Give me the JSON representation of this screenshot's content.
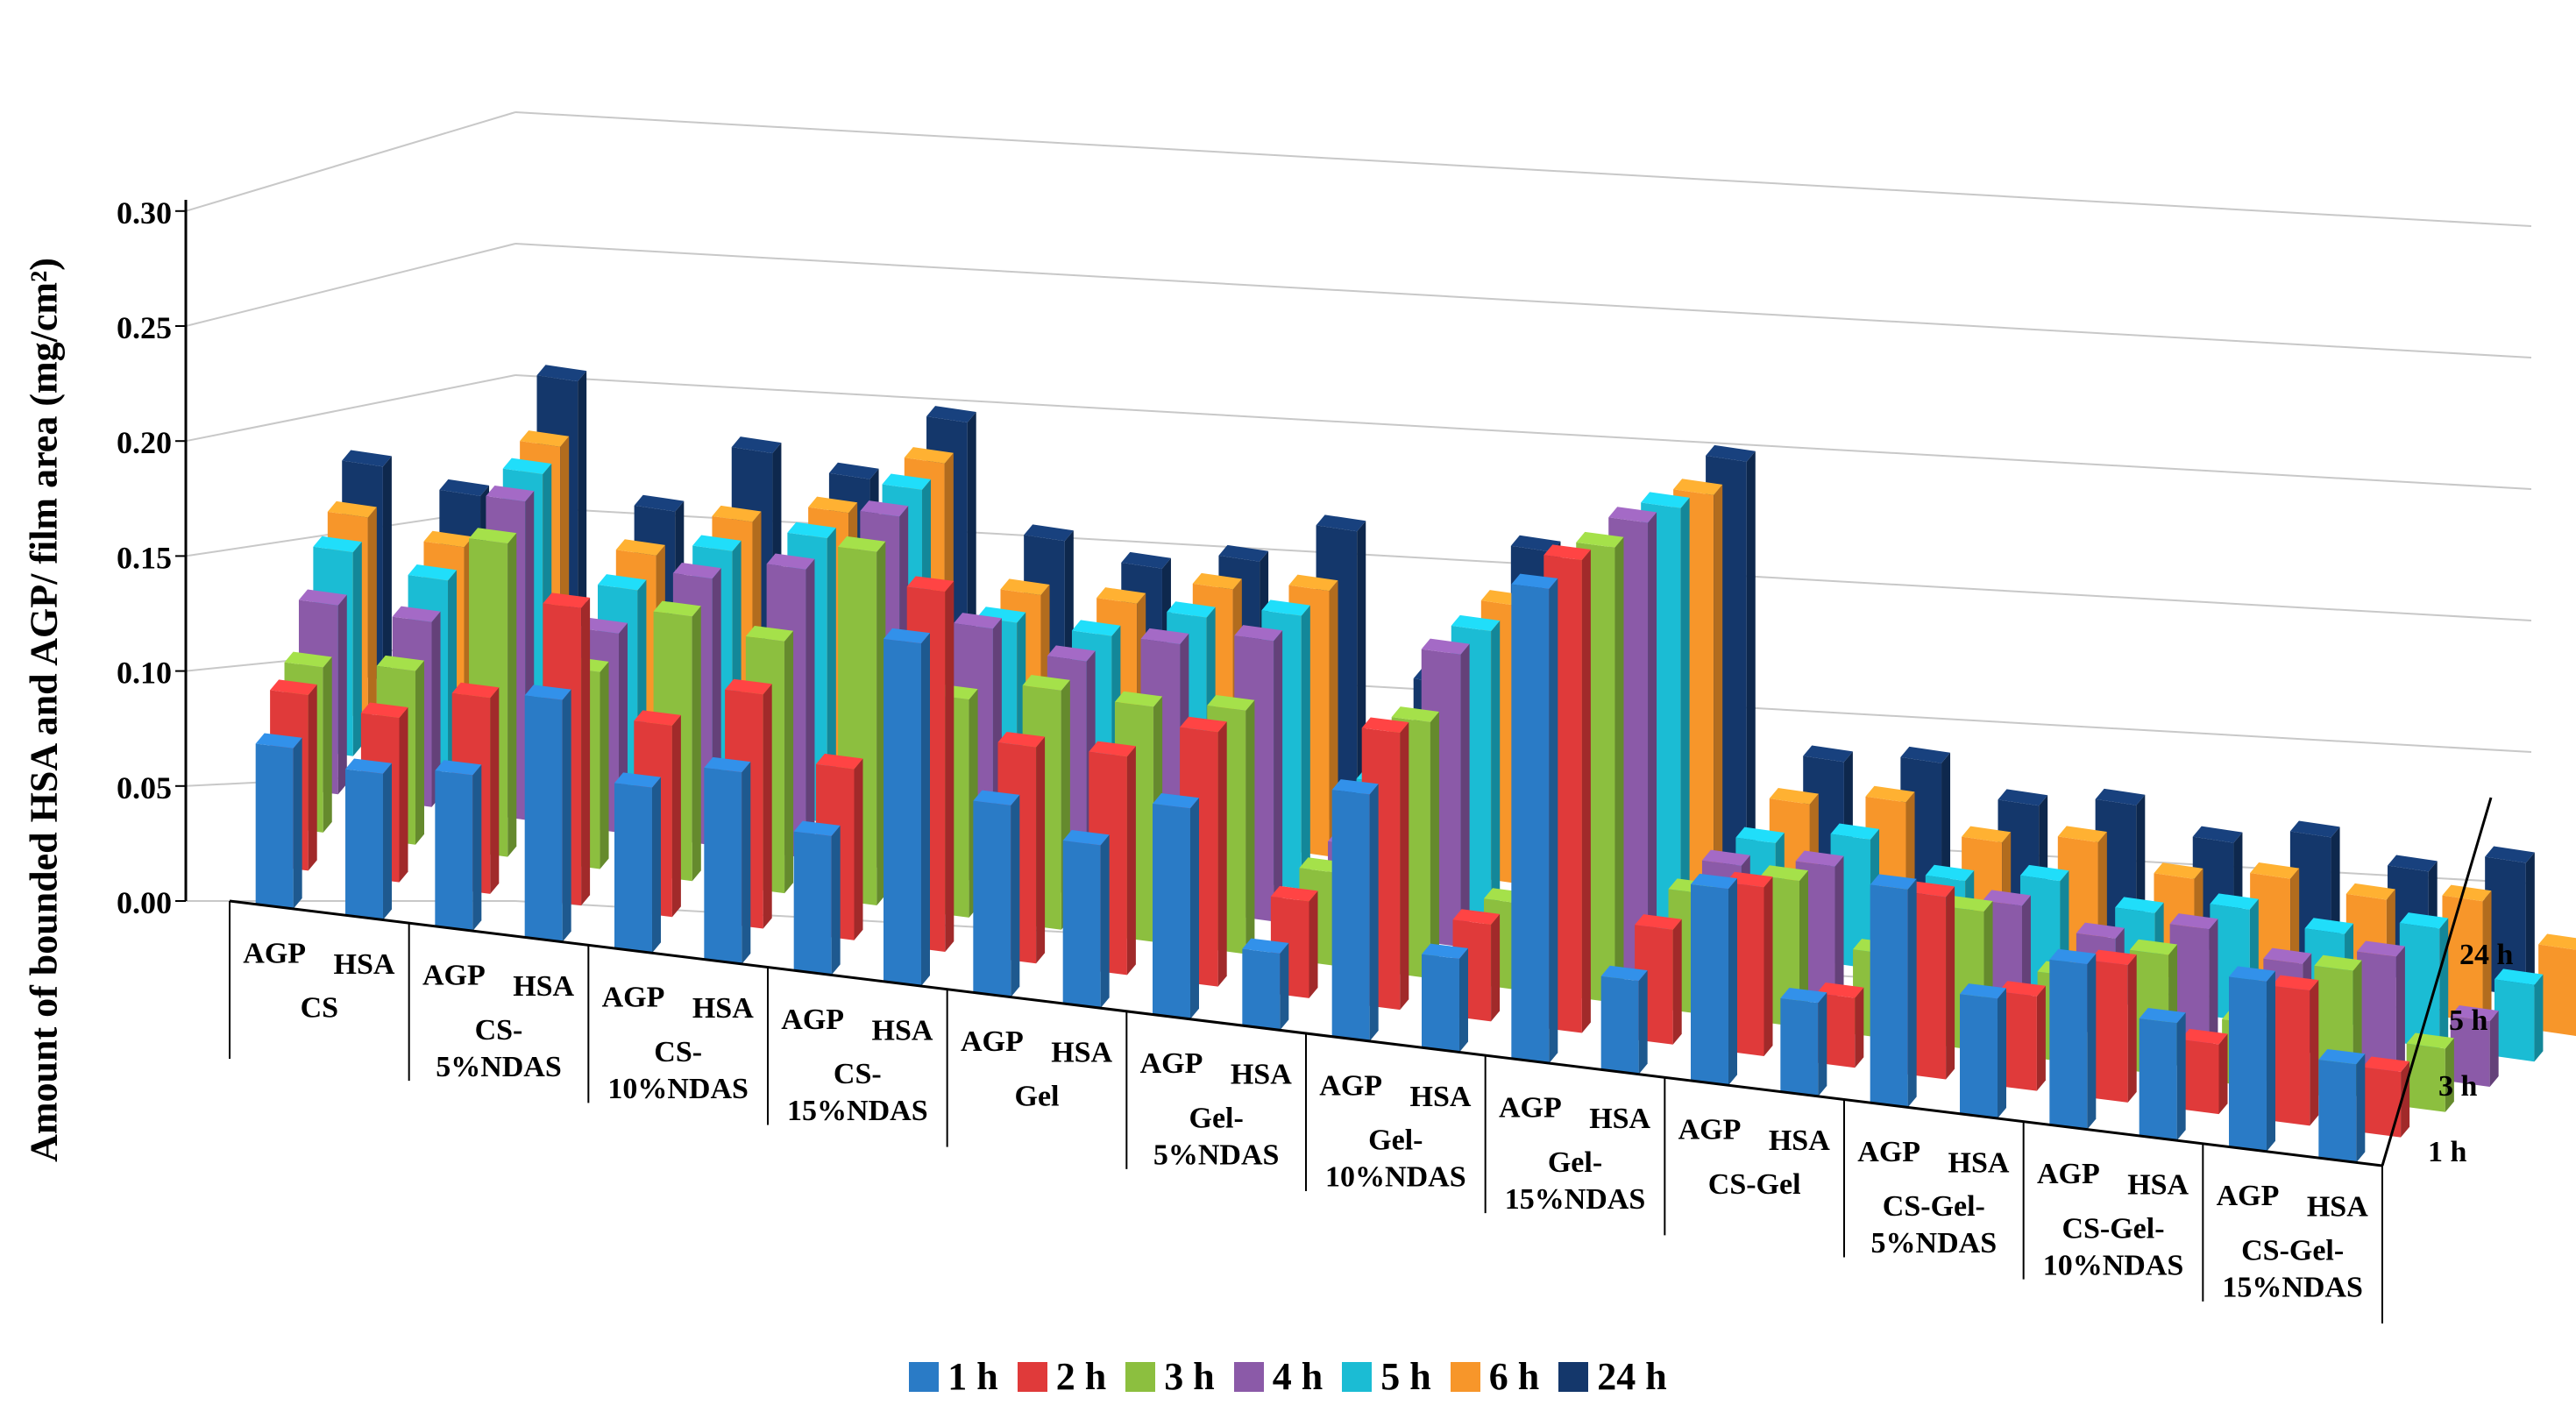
{
  "chart_data": {
    "type": "bar",
    "subtype": "3d-grouped-bar",
    "ylabel": "Amount of bounded HSA and AGP/ film area (mg/cm²)",
    "ylim": [
      0,
      0.3
    ],
    "yticks": [
      "0.00",
      "0.05",
      "0.10",
      "0.15",
      "0.20",
      "0.25",
      "0.30"
    ],
    "groups": [
      "CS",
      "CS-\n5%NDAS",
      "CS-\n10%NDAS",
      "CS-\n15%NDAS",
      "Gel",
      "Gel-\n5%NDAS",
      "Gel-\n10%NDAS",
      "Gel-\n15%NDAS",
      "CS-Gel",
      "CS-Gel-\n5%NDAS",
      "CS-Gel-\n10%NDAS",
      "CS-Gel-\n15%NDAS"
    ],
    "subcategories": [
      "AGP",
      "HSA"
    ],
    "depth_labels": [
      "1 h",
      "3 h",
      "5 h",
      "24 h"
    ],
    "series": [
      {
        "name": "1 h",
        "color": "#2a7bc6",
        "values": [
          0.067,
          0.061,
          0.065,
          0.101,
          0.069,
          0.08,
          0.058,
          0.143,
          0.08,
          0.068,
          0.088,
          0.032,
          0.103,
          0.039,
          0.198,
          0.039,
          0.082,
          0.039,
          0.091,
          0.05,
          0.069,
          0.049,
          0.071,
          0.041
        ]
      },
      {
        "name": "2 h",
        "color": "#e03a3a",
        "values": [
          0.078,
          0.073,
          0.087,
          0.132,
          0.085,
          0.104,
          0.076,
          0.16,
          0.096,
          0.097,
          0.113,
          0.043,
          0.123,
          0.043,
          0.21,
          0.051,
          0.075,
          0.031,
          0.081,
          0.042,
          0.061,
          0.031,
          0.06,
          0.029
        ]
      },
      {
        "name": "3 h",
        "color": "#8cbf3f",
        "values": [
          0.078,
          0.082,
          0.148,
          0.093,
          0.125,
          0.119,
          0.167,
          0.103,
          0.113,
          0.111,
          0.115,
          0.044,
          0.121,
          0.041,
          0.215,
          0.057,
          0.069,
          0.04,
          0.066,
          0.041,
          0.057,
          0.03,
          0.061,
          0.03
        ]
      },
      {
        "name": "4 h",
        "color": "#8b5aa8",
        "values": [
          0.095,
          0.093,
          0.16,
          0.1,
          0.134,
          0.145,
          0.178,
          0.128,
          0.118,
          0.133,
          0.141,
          0.044,
          0.147,
          0.057,
          0.226,
          0.06,
          0.066,
          0.05,
          0.059,
          0.049,
          0.06,
          0.049,
          0.059,
          0.033
        ]
      },
      {
        "name": "5 h",
        "color": "#1bbcd4",
        "values": [
          0.109,
          0.101,
          0.165,
          0.11,
          0.138,
          0.152,
          0.185,
          0.121,
          0.121,
          0.138,
          0.146,
          0.063,
          0.152,
          0.073,
          0.232,
          0.06,
          0.069,
          0.054,
          0.061,
          0.051,
          0.06,
          0.054,
          0.064,
          0.041
        ]
      },
      {
        "name": "6 h",
        "color": "#f7962a",
        "values": [
          0.114,
          0.105,
          0.17,
          0.116,
          0.143,
          0.156,
          0.192,
          0.125,
          0.128,
          0.144,
          0.151,
          0.073,
          0.158,
          0.078,
          0.237,
          0.069,
          0.078,
          0.063,
          0.071,
          0.058,
          0.066,
          0.062,
          0.069,
          0.049
        ]
      },
      {
        "name": "24 h",
        "color": "#14376b",
        "values": [
          0.129,
          0.12,
          0.198,
          0.128,
          0.172,
          0.165,
          0.208,
          0.145,
          0.137,
          0.15,
          0.177,
          0.093,
          0.182,
          0.095,
          0.254,
          0.081,
          0.089,
          0.072,
          0.081,
          0.067,
          0.079,
          0.067,
          0.081,
          0.062
        ]
      }
    ]
  },
  "legend": {
    "items": [
      {
        "label": "1 h",
        "color": "#2a7bc6"
      },
      {
        "label": "2 h",
        "color": "#e03a3a"
      },
      {
        "label": "3 h",
        "color": "#8cbf3f"
      },
      {
        "label": "4 h",
        "color": "#8b5aa8"
      },
      {
        "label": "5 h",
        "color": "#1bbcd4"
      },
      {
        "label": "6 h",
        "color": "#f7962a"
      },
      {
        "label": "24 h",
        "color": "#14376b"
      }
    ]
  }
}
